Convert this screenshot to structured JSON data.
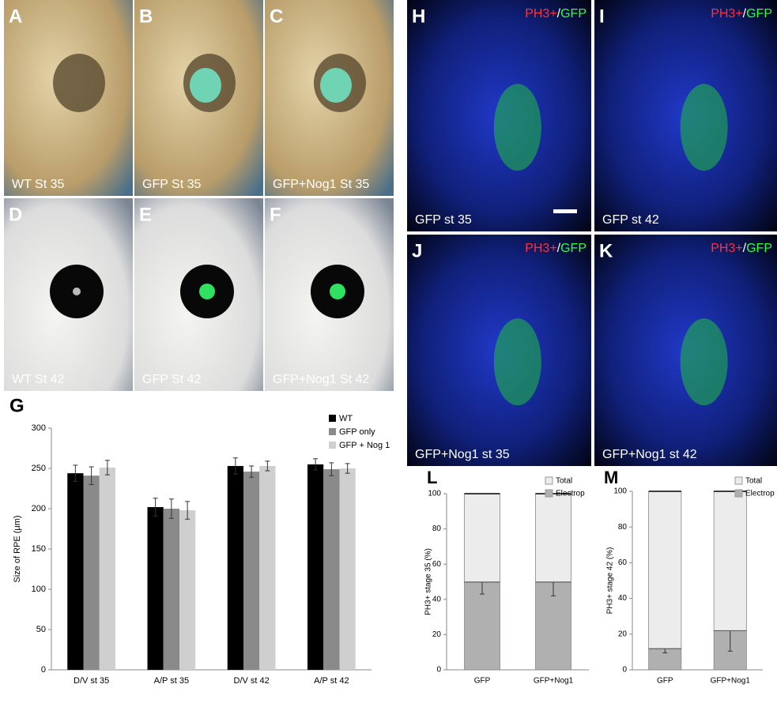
{
  "panels": [
    {
      "label": "A",
      "caption": "WT St 35"
    },
    {
      "label": "B",
      "caption": "GFP St 35"
    },
    {
      "label": "C",
      "caption": "GFP+Nog1 St 35"
    },
    {
      "label": "D",
      "caption": "WT St 42"
    },
    {
      "label": "E",
      "caption": "GFP St 42"
    },
    {
      "label": "F",
      "caption": "GFP+Nog1 St 42"
    },
    {
      "label": "H",
      "stain": [
        "PH3+",
        "/",
        "GFP"
      ],
      "caption": "GFP st 35"
    },
    {
      "label": "I",
      "stain": [
        "PH3+",
        "/",
        "GFP"
      ],
      "caption": "GFP st 42"
    },
    {
      "label": "J",
      "stain": [
        "PH3+",
        "/",
        "GFP"
      ],
      "caption": "GFP+Nog1 st 35"
    },
    {
      "label": "K",
      "stain": [
        "PH3+",
        "/",
        "GFP"
      ],
      "caption": "GFP+Nog1 st 42"
    }
  ],
  "chart_data": [
    {
      "type": "bar",
      "panel_label": "G",
      "ylabel": "Size of RPE (μm)",
      "categories": [
        "D/V st 35",
        "A/P st 35",
        "D/V st 42",
        "A/P st 42"
      ],
      "series": [
        {
          "name": "WT",
          "color": "#000000",
          "values": [
            244,
            202,
            253,
            255
          ],
          "errors": [
            10,
            11,
            10,
            7
          ]
        },
        {
          "name": "GFP only",
          "color": "#8a8a8a",
          "values": [
            241,
            200,
            246,
            249
          ],
          "errors": [
            11,
            12,
            7,
            8
          ]
        },
        {
          "name": "GFP + Nog 1",
          "color": "#cfcfcf",
          "values": [
            251,
            198,
            253,
            250
          ],
          "errors": [
            9,
            11,
            6,
            6
          ]
        }
      ],
      "ylim": [
        0,
        300
      ],
      "yticks": [
        0,
        50,
        100,
        150,
        200,
        250,
        300
      ],
      "legend": "top-right"
    },
    {
      "type": "stacked_bar",
      "panel_label": "L",
      "ylabel": "PH3+ stage 35 (%)",
      "categories": [
        "GFP",
        "GFP+Nog1"
      ],
      "series": [
        {
          "name": "Electrop",
          "color": "#b0b0b0",
          "values": [
            50,
            50
          ],
          "errors": [
            7,
            8
          ]
        },
        {
          "name": "Total",
          "color": "#ececec",
          "values": [
            50,
            50
          ]
        }
      ],
      "ylim": [
        0,
        100
      ],
      "yticks": [
        0,
        20,
        40,
        60,
        80,
        100
      ],
      "legend": "top-right"
    },
    {
      "type": "stacked_bar",
      "panel_label": "M",
      "ylabel": "PH3+ stage 42 (%)",
      "categories": [
        "GFP",
        "GFP+Nog1"
      ],
      "series": [
        {
          "name": "Electrop",
          "color": "#b0b0b0",
          "values": [
            12,
            22
          ],
          "errors": [
            2.5,
            11.5
          ]
        },
        {
          "name": "Total",
          "color": "#ececec",
          "values": [
            88,
            78
          ]
        }
      ],
      "ylim": [
        0,
        100
      ],
      "yticks": [
        0,
        20,
        40,
        60,
        80,
        100
      ],
      "legend": "top-right"
    }
  ]
}
